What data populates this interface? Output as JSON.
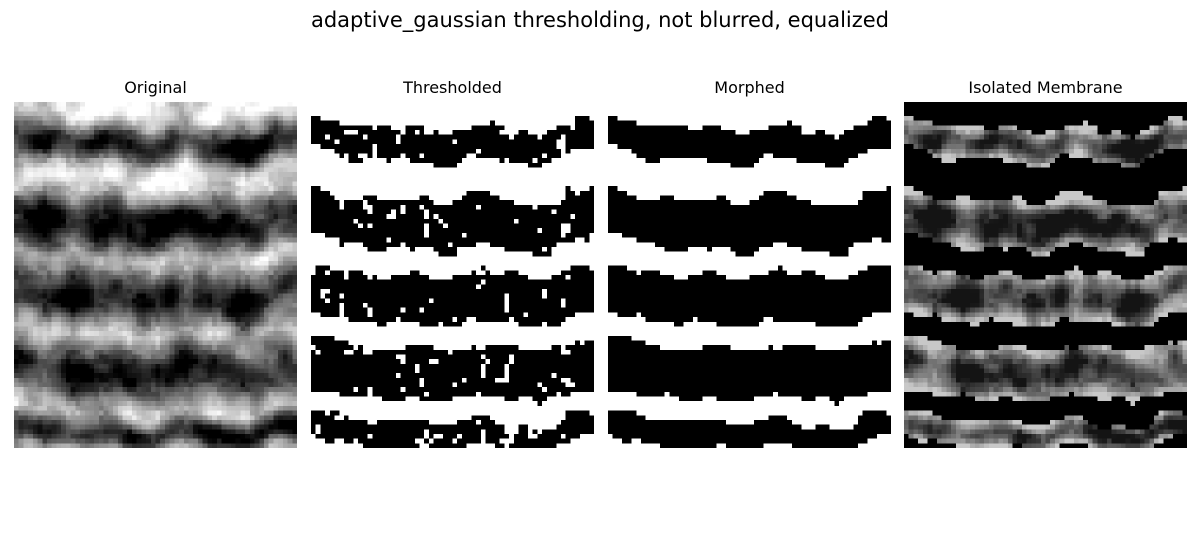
{
  "figure": {
    "title": "adaptive_gaussian thresholding, not blurred, equalized"
  },
  "panels": [
    {
      "title": "Original",
      "kind": "grayscale"
    },
    {
      "title": "Thresholded",
      "kind": "binary-noisy"
    },
    {
      "title": "Morphed",
      "kind": "binary-clean"
    },
    {
      "title": "Isolated Membrane",
      "kind": "masked"
    }
  ],
  "image": {
    "grid_cols": 60,
    "grid_rows": 74,
    "dark_band_count": 5
  }
}
